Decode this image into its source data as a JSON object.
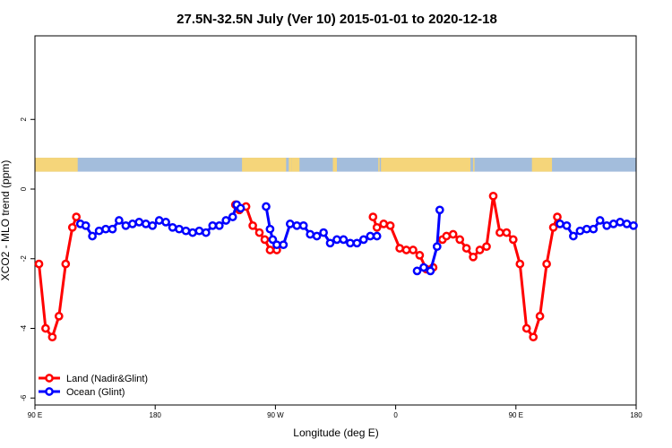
{
  "chart_data": {
    "type": "line",
    "title": "27.5N-32.5N July (Ver 10)   2015-01-01 to 2020-12-18",
    "xlabel": "Longitude (deg E)",
    "ylabel": "XCO2 - MLO trend (ppm)",
    "xlim": [
      90,
      540
    ],
    "ylim": [
      -6.2,
      4.4
    ],
    "x_ticks": [
      {
        "value": 90,
        "label": "90 E"
      },
      {
        "value": 180,
        "label": "180"
      },
      {
        "value": 270,
        "label": "90 W"
      },
      {
        "value": 360,
        "label": "0"
      },
      {
        "value": 450,
        "label": "90 E"
      },
      {
        "value": 540,
        "label": "180"
      }
    ],
    "y_ticks": [
      {
        "value": -6,
        "label": "-6"
      },
      {
        "value": -4,
        "label": "-4"
      },
      {
        "value": -2,
        "label": "-2"
      },
      {
        "value": 0,
        "label": "0"
      },
      {
        "value": 2,
        "label": "2"
      }
    ],
    "land_ocean_strip": {
      "y_range": [
        0.5,
        0.9
      ],
      "land_color": "#f5d57a",
      "ocean_color": "#a3bddc",
      "land_spans": [
        [
          90,
          122
        ],
        [
          245,
          278
        ],
        [
          280,
          282
        ],
        [
          282,
          288
        ],
        [
          313,
          316
        ],
        [
          347,
          348
        ],
        [
          349,
          416
        ],
        [
          418,
          419
        ],
        [
          462,
          477
        ]
      ]
    },
    "series": [
      {
        "name": "Land (Nadir&Glint)",
        "color": "#ff0000",
        "segments": [
          [
            [
              93,
              -2.15
            ],
            [
              98,
              -4.0
            ],
            [
              103,
              -4.25
            ],
            [
              108,
              -3.65
            ],
            [
              113,
              -2.15
            ],
            [
              118,
              -1.1
            ],
            [
              121,
              -0.8
            ]
          ],
          [
            [
              240,
              -0.45
            ],
            [
              243,
              -0.6
            ],
            [
              248,
              -0.5
            ],
            [
              253,
              -1.05
            ],
            [
              258,
              -1.25
            ],
            [
              262,
              -1.45
            ],
            [
              266,
              -1.75
            ],
            [
              271,
              -1.75
            ]
          ],
          [
            [
              343,
              -0.8
            ],
            [
              346,
              -1.1
            ],
            [
              351,
              -1.0
            ],
            [
              356,
              -1.05
            ],
            [
              363,
              -1.7
            ],
            [
              368,
              -1.75
            ],
            [
              373,
              -1.75
            ],
            [
              378,
              -1.9
            ],
            [
              383,
              -2.3
            ],
            [
              388,
              -2.25
            ]
          ],
          [
            [
              395,
              -1.45
            ],
            [
              398,
              -1.35
            ],
            [
              403,
              -1.3
            ],
            [
              408,
              -1.45
            ],
            [
              413,
              -1.7
            ],
            [
              418,
              -1.95
            ],
            [
              423,
              -1.75
            ],
            [
              428,
              -1.65
            ],
            [
              433,
              -0.2
            ],
            [
              438,
              -1.25
            ],
            [
              443,
              -1.25
            ],
            [
              448,
              -1.45
            ],
            [
              453,
              -2.15
            ],
            [
              458,
              -4.0
            ],
            [
              463,
              -4.25
            ],
            [
              468,
              -3.65
            ],
            [
              473,
              -2.15
            ],
            [
              478,
              -1.1
            ],
            [
              481,
              -0.8
            ]
          ]
        ]
      },
      {
        "name": "Ocean (Glint)",
        "color": "#0000ff",
        "segments": [
          [
            [
              124,
              -1.0
            ],
            [
              128,
              -1.05
            ],
            [
              133,
              -1.35
            ],
            [
              138,
              -1.2
            ],
            [
              143,
              -1.15
            ],
            [
              148,
              -1.15
            ],
            [
              153,
              -0.9
            ],
            [
              158,
              -1.05
            ],
            [
              163,
              -1.0
            ],
            [
              168,
              -0.95
            ],
            [
              173,
              -1.0
            ],
            [
              178,
              -1.05
            ],
            [
              183,
              -0.9
            ],
            [
              188,
              -0.95
            ],
            [
              193,
              -1.1
            ],
            [
              198,
              -1.15
            ],
            [
              203,
              -1.2
            ],
            [
              208,
              -1.25
            ],
            [
              213,
              -1.2
            ],
            [
              218,
              -1.25
            ],
            [
              223,
              -1.05
            ],
            [
              228,
              -1.05
            ],
            [
              233,
              -0.9
            ],
            [
              238,
              -0.8
            ],
            [
              241,
              -0.45
            ],
            [
              244,
              -0.55
            ]
          ],
          [
            [
              263,
              -0.5
            ],
            [
              266,
              -1.15
            ],
            [
              268,
              -1.45
            ],
            [
              271,
              -1.6
            ],
            [
              276,
              -1.6
            ],
            [
              281,
              -1.0
            ],
            [
              286,
              -1.05
            ],
            [
              291,
              -1.05
            ],
            [
              296,
              -1.3
            ],
            [
              301,
              -1.35
            ],
            [
              306,
              -1.25
            ],
            [
              311,
              -1.55
            ],
            [
              316,
              -1.45
            ],
            [
              321,
              -1.45
            ],
            [
              326,
              -1.55
            ],
            [
              331,
              -1.55
            ],
            [
              336,
              -1.45
            ],
            [
              341,
              -1.35
            ],
            [
              346,
              -1.35
            ]
          ],
          [
            [
              376,
              -2.35
            ],
            [
              381,
              -2.25
            ],
            [
              386,
              -2.35
            ],
            [
              391,
              -1.65
            ],
            [
              393,
              -0.6
            ]
          ],
          [
            [
              483,
              -1.0
            ],
            [
              488,
              -1.05
            ],
            [
              493,
              -1.35
            ],
            [
              498,
              -1.2
            ],
            [
              503,
              -1.15
            ],
            [
              508,
              -1.15
            ],
            [
              513,
              -0.9
            ],
            [
              518,
              -1.05
            ],
            [
              523,
              -1.0
            ],
            [
              528,
              -0.95
            ],
            [
              533,
              -1.0
            ],
            [
              538,
              -1.05
            ]
          ]
        ]
      }
    ],
    "legend_position": "bottom-left",
    "grid": false
  }
}
